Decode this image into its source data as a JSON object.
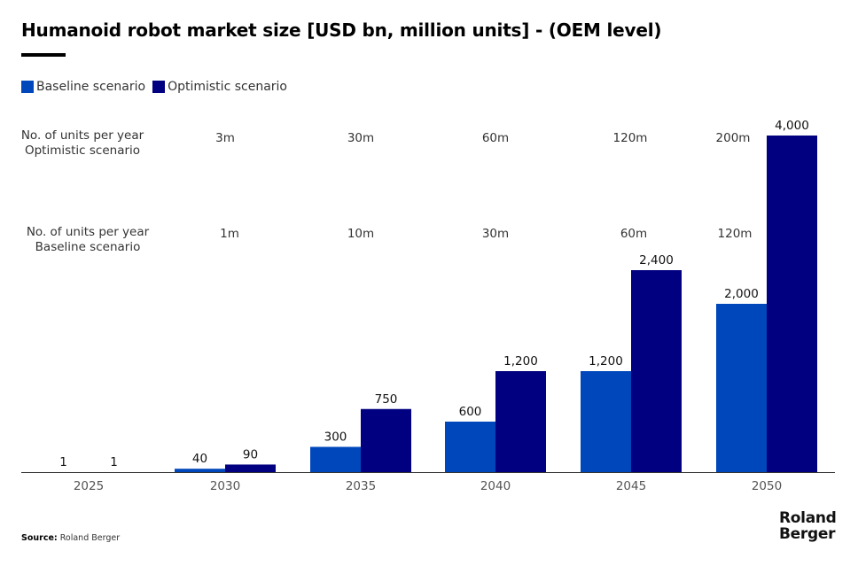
{
  "title": "Humanoid robot market size [USD bn, million units] - (OEM level)",
  "legend": [
    {
      "label": "Baseline scenario",
      "color": "#0047BB"
    },
    {
      "label": "Optimistic scenario",
      "color": "#000080"
    }
  ],
  "units_rows": {
    "optimistic": {
      "label_line1": "No. of units per year",
      "label_line2": "Optimistic scenario",
      "values": [
        "3m",
        "30m",
        "60m",
        "120m",
        "200m"
      ]
    },
    "baseline": {
      "label_line1": "No. of units per year",
      "label_line2": "Baseline scenario",
      "values": [
        "1m",
        "10m",
        "30m",
        "60m",
        "120m"
      ]
    }
  },
  "chart_data": {
    "type": "bar",
    "title": "Humanoid robot market size [USD bn, million units] - (OEM level)",
    "xlabel": "",
    "ylabel": "USD bn",
    "categories": [
      "2025",
      "2030",
      "2035",
      "2040",
      "2045",
      "2050"
    ],
    "series": [
      {
        "name": "Baseline scenario",
        "color": "#0047BB",
        "values": [
          1,
          40,
          300,
          600,
          1200,
          2000
        ],
        "labels": [
          "1",
          "40",
          "300",
          "600",
          "1,200",
          "2,000"
        ]
      },
      {
        "name": "Optimistic scenario",
        "color": "#000080",
        "values": [
          1,
          90,
          750,
          1200,
          2400,
          4000
        ],
        "labels": [
          "1",
          "90",
          "750",
          "1,200",
          "2,400",
          "4,000"
        ]
      }
    ],
    "ylim": [
      0,
      4000
    ],
    "grid": false,
    "legend_position": "top-left",
    "y_axis_visible": false
  },
  "source": {
    "label": "Source:",
    "text": "Roland Berger"
  },
  "logo": {
    "line1": "Roland",
    "line2": "Berger"
  }
}
